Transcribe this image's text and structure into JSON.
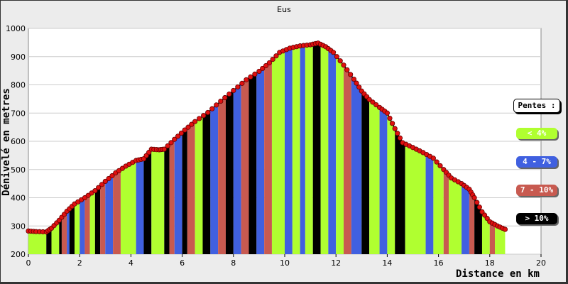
{
  "chart_data": {
    "type": "area",
    "title": "Eus",
    "xlabel": "Distance en km",
    "ylabel": "Dénivelé en metres",
    "xlim": [
      0,
      20
    ],
    "ylim": [
      200,
      1000
    ],
    "x_ticks": [
      0,
      2,
      4,
      6,
      8,
      10,
      12,
      14,
      16,
      18,
      20
    ],
    "y_ticks": [
      200,
      300,
      400,
      500,
      600,
      700,
      800,
      900,
      1000
    ],
    "grid": "horizontal",
    "legend_placement": "right",
    "legend": {
      "title": "Pentes :",
      "items": [
        {
          "label": "< 4%",
          "color": "#b0ff30"
        },
        {
          "label": "4 - 7%",
          "color": "#4060e0"
        },
        {
          "label": "7 - 10%",
          "color": "#c85a50"
        },
        {
          "label": "> 10%",
          "color": "#000000"
        }
      ]
    },
    "profile": {
      "x": [
        0,
        0.3,
        0.7,
        0.9,
        1.2,
        1.5,
        1.8,
        2.2,
        2.6,
        3.0,
        3.4,
        3.8,
        4.2,
        4.5,
        4.8,
        5.1,
        5.3,
        5.7,
        6.1,
        6.5,
        7.0,
        7.5,
        8.0,
        8.5,
        9.0,
        9.4,
        9.8,
        10.2,
        10.6,
        11.0,
        11.3,
        11.6,
        11.9,
        12.3,
        12.7,
        13.0,
        13.3,
        13.7,
        14.0,
        14.3,
        14.6,
        15.0,
        15.4,
        15.8,
        16.2,
        16.5,
        16.9,
        17.2,
        17.4,
        17.7,
        18.0,
        18.3,
        18.6
      ],
      "y": [
        282,
        280,
        279,
        292,
        320,
        352,
        378,
        400,
        425,
        458,
        488,
        512,
        532,
        538,
        572,
        570,
        572,
        607,
        640,
        670,
        702,
        742,
        780,
        818,
        848,
        878,
        915,
        930,
        938,
        942,
        948,
        935,
        915,
        870,
        820,
        778,
        748,
        720,
        700,
        645,
        595,
        578,
        560,
        540,
        500,
        470,
        450,
        430,
        400,
        350,
        315,
        300,
        288
      ]
    },
    "slope_bands": [
      {
        "from": 0,
        "to": 0.7,
        "color": "#b0ff30"
      },
      {
        "from": 0.7,
        "to": 0.9,
        "color": "#000000"
      },
      {
        "from": 0.9,
        "to": 1.2,
        "color": "#b0ff30"
      },
      {
        "from": 1.2,
        "to": 1.3,
        "color": "#000000"
      },
      {
        "from": 1.3,
        "to": 1.5,
        "color": "#c85a50"
      },
      {
        "from": 1.5,
        "to": 1.6,
        "color": "#4060e0"
      },
      {
        "from": 1.6,
        "to": 1.8,
        "color": "#000000"
      },
      {
        "from": 1.8,
        "to": 2.0,
        "color": "#b0ff30"
      },
      {
        "from": 2.0,
        "to": 2.2,
        "color": "#4060e0"
      },
      {
        "from": 2.2,
        "to": 2.4,
        "color": "#c85a50"
      },
      {
        "from": 2.4,
        "to": 2.6,
        "color": "#b0ff30"
      },
      {
        "from": 2.6,
        "to": 2.8,
        "color": "#000000"
      },
      {
        "from": 2.8,
        "to": 3.0,
        "color": "#c85a50"
      },
      {
        "from": 3.0,
        "to": 3.3,
        "color": "#4060e0"
      },
      {
        "from": 3.3,
        "to": 3.6,
        "color": "#c85a50"
      },
      {
        "from": 3.6,
        "to": 4.2,
        "color": "#b0ff30"
      },
      {
        "from": 4.2,
        "to": 4.5,
        "color": "#4060e0"
      },
      {
        "from": 4.5,
        "to": 4.8,
        "color": "#000000"
      },
      {
        "from": 4.8,
        "to": 5.3,
        "color": "#b0ff30"
      },
      {
        "from": 5.3,
        "to": 5.5,
        "color": "#000000"
      },
      {
        "from": 5.5,
        "to": 5.7,
        "color": "#c85a50"
      },
      {
        "from": 5.7,
        "to": 6.0,
        "color": "#4060e0"
      },
      {
        "from": 6.0,
        "to": 6.2,
        "color": "#000000"
      },
      {
        "from": 6.2,
        "to": 6.5,
        "color": "#c85a50"
      },
      {
        "from": 6.5,
        "to": 6.8,
        "color": "#b0ff30"
      },
      {
        "from": 6.8,
        "to": 7.1,
        "color": "#000000"
      },
      {
        "from": 7.1,
        "to": 7.4,
        "color": "#4060e0"
      },
      {
        "from": 7.4,
        "to": 7.7,
        "color": "#c85a50"
      },
      {
        "from": 7.7,
        "to": 8.0,
        "color": "#000000"
      },
      {
        "from": 8.0,
        "to": 8.3,
        "color": "#4060e0"
      },
      {
        "from": 8.3,
        "to": 8.6,
        "color": "#c85a50"
      },
      {
        "from": 8.6,
        "to": 8.9,
        "color": "#000000"
      },
      {
        "from": 8.9,
        "to": 9.2,
        "color": "#4060e0"
      },
      {
        "from": 9.2,
        "to": 9.5,
        "color": "#c85a50"
      },
      {
        "from": 9.5,
        "to": 10.0,
        "color": "#b0ff30"
      },
      {
        "from": 10.0,
        "to": 10.3,
        "color": "#4060e0"
      },
      {
        "from": 10.3,
        "to": 10.6,
        "color": "#b0ff30"
      },
      {
        "from": 10.6,
        "to": 10.8,
        "color": "#4060e0"
      },
      {
        "from": 10.8,
        "to": 11.1,
        "color": "#b0ff30"
      },
      {
        "from": 11.1,
        "to": 11.4,
        "color": "#000000"
      },
      {
        "from": 11.4,
        "to": 11.7,
        "color": "#b0ff30"
      },
      {
        "from": 11.7,
        "to": 12.0,
        "color": "#4060e0"
      },
      {
        "from": 12.0,
        "to": 12.3,
        "color": "#b0ff30"
      },
      {
        "from": 12.3,
        "to": 12.6,
        "color": "#c85a50"
      },
      {
        "from": 12.6,
        "to": 13.0,
        "color": "#4060e0"
      },
      {
        "from": 13.0,
        "to": 13.3,
        "color": "#000000"
      },
      {
        "from": 13.3,
        "to": 13.7,
        "color": "#b0ff30"
      },
      {
        "from": 13.7,
        "to": 14.0,
        "color": "#4060e0"
      },
      {
        "from": 14.0,
        "to": 14.3,
        "color": "#b0ff30"
      },
      {
        "from": 14.3,
        "to": 14.7,
        "color": "#000000"
      },
      {
        "from": 14.7,
        "to": 15.5,
        "color": "#b0ff30"
      },
      {
        "from": 15.5,
        "to": 15.8,
        "color": "#4060e0"
      },
      {
        "from": 15.8,
        "to": 16.2,
        "color": "#b0ff30"
      },
      {
        "from": 16.2,
        "to": 16.4,
        "color": "#c85a50"
      },
      {
        "from": 16.4,
        "to": 16.9,
        "color": "#b0ff30"
      },
      {
        "from": 16.9,
        "to": 17.2,
        "color": "#4060e0"
      },
      {
        "from": 17.2,
        "to": 17.4,
        "color": "#c85a50"
      },
      {
        "from": 17.4,
        "to": 17.7,
        "color": "#000000"
      },
      {
        "from": 17.7,
        "to": 18.0,
        "color": "#b0ff30"
      },
      {
        "from": 18.0,
        "to": 18.2,
        "color": "#c85a50"
      },
      {
        "from": 18.2,
        "to": 18.6,
        "color": "#b0ff30"
      }
    ]
  }
}
